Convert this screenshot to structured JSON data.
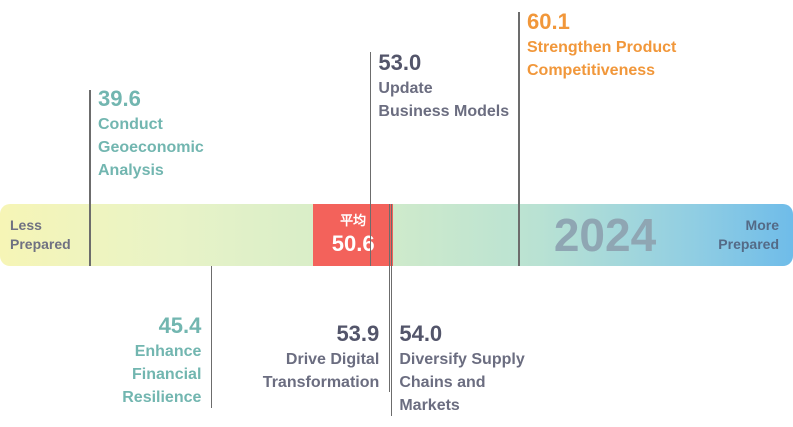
{
  "chart_data": {
    "type": "scale",
    "year": "2024",
    "scale_labels": {
      "low": "Less\nPrepared",
      "high": "More\nPrepared"
    },
    "xlim": [
      36,
      62
    ],
    "average": {
      "label": "平均",
      "value": 50.6,
      "color": "#f3625b"
    },
    "items": [
      {
        "value": 39.6,
        "label": "Conduct\nGeoeconomic\nAnalysis",
        "position": "above",
        "color": "#72b6b0"
      },
      {
        "value": 45.4,
        "label": "Enhance\nFinancial\nResilience",
        "position": "below",
        "color": "#72b6b0"
      },
      {
        "value": 53.0,
        "label": "Update\nBusiness Models",
        "position": "above",
        "color": "#53556a"
      },
      {
        "value": 53.9,
        "label": "Drive Digital\nTransformation",
        "position": "below",
        "color": "#53556a"
      },
      {
        "value": 54.0,
        "label": "Diversify Supply\nChains and\nMarkets",
        "position": "below",
        "color": "#53556a"
      },
      {
        "value": 60.1,
        "label": "Strengthen Product\nCompetitiveness",
        "position": "above",
        "color": "#f1973a"
      }
    ]
  }
}
